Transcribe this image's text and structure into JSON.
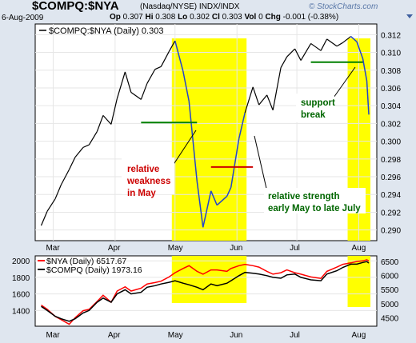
{
  "header": {
    "symbol": "$COMPQ:$NYA",
    "exchange": "(Nasdaq/NYSE)  INDX/INDX",
    "date": "6-Aug-2009",
    "op_label": "Op",
    "op": "0.307",
    "hi_label": "Hi",
    "hi": "0.308",
    "lo_label": "Lo",
    "lo": "0.302",
    "cl_label": "Cl",
    "cl": "0.303",
    "vol_label": "Vol",
    "vol": "0",
    "chg_label": "Chg",
    "chg": "-0.001 (-0.38%)",
    "brand": "© StockCharts.com",
    "menu_icon": "dropdown-arrow-icon"
  },
  "colors": {
    "background": "#dfe6ef",
    "plot_background": "#ffffff",
    "highlight": "#ffff00",
    "ratio_line": "#000000",
    "ratio_line_highlight": "#2244cc",
    "nya": "#ff0000",
    "compq": "#000000",
    "support": "#008000",
    "resistance": "#cc0000",
    "annotation_red": "#cc0000",
    "annotation_green": "#006600"
  },
  "chart_data": [
    {
      "type": "line",
      "legend": "$COMPQ:$NYA (Daily) 0.303",
      "y_ticks": [
        "0.312",
        "0.310",
        "0.308",
        "0.306",
        "0.304",
        "0.302",
        "0.300",
        "0.298",
        "0.296",
        "0.294",
        "0.292",
        "0.290"
      ],
      "ylim": [
        0.2888,
        0.3132
      ],
      "x_ticks": [
        "Mar",
        "Apr",
        "May",
        "Jun",
        "Jul",
        "Aug"
      ],
      "x": [
        "2009-02-23",
        "2009-02-26",
        "2009-03-02",
        "2009-03-05",
        "2009-03-09",
        "2009-03-12",
        "2009-03-16",
        "2009-03-19",
        "2009-03-23",
        "2009-03-26",
        "2009-03-30",
        "2009-04-02",
        "2009-04-06",
        "2009-04-09",
        "2009-04-14",
        "2009-04-17",
        "2009-04-21",
        "2009-04-24",
        "2009-04-28",
        "2009-05-01",
        "2009-05-05",
        "2009-05-08",
        "2009-05-12",
        "2009-05-15",
        "2009-05-19",
        "2009-05-22",
        "2009-05-27",
        "2009-05-29",
        "2009-06-02",
        "2009-06-05",
        "2009-06-09",
        "2009-06-12",
        "2009-06-16",
        "2009-06-19",
        "2009-06-23",
        "2009-06-26",
        "2009-06-30",
        "2009-07-03",
        "2009-07-08",
        "2009-07-13",
        "2009-07-16",
        "2009-07-21",
        "2009-07-24",
        "2009-07-28",
        "2009-07-31",
        "2009-08-03",
        "2009-08-05",
        "2009-08-06"
      ],
      "values": [
        0.2905,
        0.2921,
        0.2935,
        0.2951,
        0.2968,
        0.2982,
        0.2993,
        0.2996,
        0.3011,
        0.3029,
        0.3019,
        0.3048,
        0.3078,
        0.3055,
        0.3047,
        0.3065,
        0.3081,
        0.3084,
        0.3101,
        0.3113,
        0.3079,
        0.3045,
        0.2955,
        0.2903,
        0.2944,
        0.2928,
        0.2938,
        0.2948,
        0.3003,
        0.3032,
        0.3061,
        0.3041,
        0.3052,
        0.3035,
        0.3083,
        0.3095,
        0.3104,
        0.3091,
        0.311,
        0.3102,
        0.3115,
        0.3107,
        0.3111,
        0.3118,
        0.3112,
        0.3093,
        0.3068,
        0.303
      ],
      "highlight_ranges": [
        [
          "2009-05-01",
          "2009-06-05"
        ],
        [
          "2009-07-28",
          "2009-08-06"
        ]
      ],
      "reference_lines": [
        {
          "value": 0.3021,
          "from": "2009-04-14",
          "to": "2009-05-12",
          "color": "support"
        },
        {
          "value": 0.2971,
          "from": "2009-05-19",
          "to": "2009-06-09",
          "color": "resistance"
        },
        {
          "value": 0.3089,
          "from": "2009-07-08",
          "to": "2009-08-03",
          "color": "support"
        }
      ],
      "annotations": [
        {
          "text": [
            "relative",
            "weakness",
            "in May"
          ],
          "color": "annotation_red"
        },
        {
          "text": [
            "relative strength",
            "early May to late July"
          ],
          "color": "annotation_green"
        },
        {
          "text": [
            "support",
            "break"
          ],
          "color": "annotation_green"
        }
      ]
    },
    {
      "type": "line",
      "series": [
        {
          "name": "$NYA (Daily) 6517.67",
          "color": "nya",
          "values": [
            4950,
            4800,
            4550,
            4430,
            4270,
            4500,
            4750,
            4800,
            5080,
            5300,
            5050,
            5450,
            5600,
            5450,
            5550,
            5700,
            5750,
            5800,
            5950,
            6100,
            6250,
            6350,
            6150,
            6050,
            6200,
            6200,
            6150,
            6250,
            6350,
            6400,
            6350,
            6300,
            6150,
            6050,
            6100,
            6200,
            6100,
            6050,
            5950,
            5900,
            6150,
            6300,
            6400,
            6450,
            6500,
            6520,
            6560,
            6517.67
          ]
        },
        {
          "name": "$COMPQ (Daily) 1973.16",
          "color": "compq",
          "values": [
            1450,
            1400,
            1330,
            1300,
            1270,
            1300,
            1370,
            1400,
            1500,
            1550,
            1500,
            1600,
            1650,
            1600,
            1620,
            1680,
            1700,
            1720,
            1740,
            1760,
            1730,
            1710,
            1680,
            1650,
            1720,
            1700,
            1730,
            1760,
            1820,
            1860,
            1850,
            1840,
            1820,
            1800,
            1790,
            1830,
            1840,
            1800,
            1770,
            1760,
            1840,
            1880,
            1920,
            1960,
            1960,
            1980,
            1990,
            1973.16
          ]
        }
      ],
      "left_ticks": [
        "2000",
        "1800",
        "1600",
        "1400"
      ],
      "left_ylim": [
        1210,
        2060
      ],
      "right_ticks": [
        "6500",
        "6000",
        "5500",
        "5000",
        "4500"
      ],
      "right_ylim": [
        4200,
        6700
      ],
      "x_ticks": [
        "Mar",
        "Apr",
        "May",
        "Jun",
        "Jul",
        "Aug"
      ]
    }
  ]
}
